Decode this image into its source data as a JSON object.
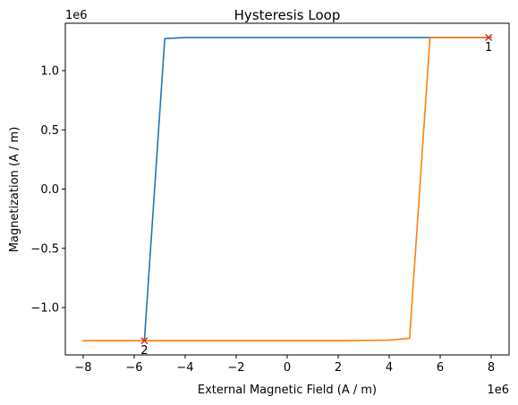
{
  "chart_data": {
    "type": "line",
    "title": "Hysteresis Loop",
    "xlabel": "External Magnetic Field (A / m)",
    "ylabel": "Magnetization (A / m)",
    "x_offset_label": "1e6",
    "y_offset_label": "1e6",
    "xlim": [
      -8.7,
      8.7
    ],
    "ylim": [
      -1.4,
      1.4
    ],
    "x_ticks": [
      -8,
      -6,
      -4,
      -2,
      0,
      2,
      4,
      6,
      8
    ],
    "x_tick_labels": [
      "−8",
      "−6",
      "−4",
      "−2",
      "0",
      "2",
      "4",
      "6",
      "8"
    ],
    "y_ticks": [
      -1.0,
      -0.5,
      0.0,
      0.5,
      1.0
    ],
    "y_tick_labels": [
      "−1.0",
      "−0.5",
      "0.0",
      "0.5",
      "1.0"
    ],
    "grid": false,
    "series": [
      {
        "color": "#1f77b4",
        "x": [
          -5.6,
          -4.8,
          -4.0,
          -2.0,
          0.0,
          2.0,
          4.0,
          6.0,
          8.0
        ],
        "y": [
          -1.28,
          1.27,
          1.28,
          1.28,
          1.28,
          1.28,
          1.28,
          1.28,
          1.28
        ]
      },
      {
        "color": "#ff7f0e",
        "x": [
          -8.0,
          -6.0,
          -4.0,
          -2.0,
          0.0,
          2.0,
          4.0,
          4.8,
          5.6,
          6.0,
          8.0
        ],
        "y": [
          -1.28,
          -1.28,
          -1.28,
          -1.28,
          -1.28,
          -1.28,
          -1.275,
          -1.26,
          1.28,
          1.28,
          1.28
        ]
      }
    ],
    "markers": [
      {
        "label": "1",
        "x": 7.9,
        "y": 1.28,
        "color": "#d62728"
      },
      {
        "label": "2",
        "x": -5.6,
        "y": -1.28,
        "color": "#d62728"
      }
    ]
  }
}
